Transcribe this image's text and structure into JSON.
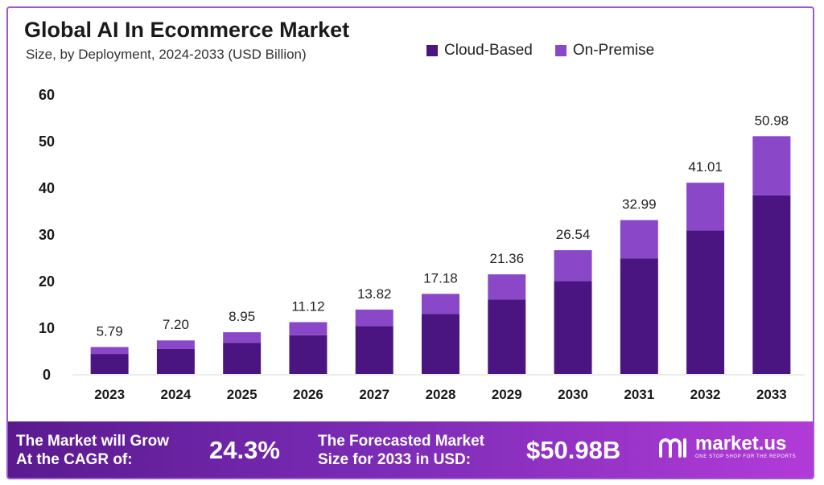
{
  "header": {
    "title": "Global AI In Ecommerce Market",
    "subtitle": "Size, by Deployment, 2024-2033 (USD Billion)"
  },
  "legend": [
    {
      "label": "Cloud-Based",
      "color": "#4a1580"
    },
    {
      "label": "On-Premise",
      "color": "#8a48c8"
    }
  ],
  "chart_data": {
    "type": "bar",
    "stacked": true,
    "categories": [
      "2023",
      "2024",
      "2025",
      "2026",
      "2027",
      "2028",
      "2029",
      "2030",
      "2031",
      "2032",
      "2033"
    ],
    "series": [
      {
        "name": "Cloud-Based",
        "color": "#4a1580",
        "values": [
          4.3,
          5.4,
          6.7,
          8.3,
          10.3,
          12.9,
          16.0,
          19.9,
          24.8,
          30.8,
          38.3
        ]
      },
      {
        "name": "On-Premise",
        "color": "#8a48c8",
        "values": [
          1.49,
          1.8,
          2.25,
          2.82,
          3.52,
          4.28,
          5.36,
          6.64,
          8.19,
          10.21,
          12.68
        ]
      }
    ],
    "totals": [
      "5.79",
      "7.20",
      "8.95",
      "11.12",
      "13.82",
      "17.18",
      "21.36",
      "26.54",
      "32.99",
      "41.01",
      "50.98"
    ],
    "yticks": [
      0,
      10,
      20,
      30,
      40,
      50,
      60
    ],
    "ylim": [
      0,
      60
    ],
    "title": "Global AI In Ecommerce Market",
    "xlabel": "",
    "ylabel": "",
    "grid": false,
    "legend_position": "top-right"
  },
  "footer": {
    "cagr_text_1": "The Market will Grow",
    "cagr_text_2": "At the CAGR of:",
    "cagr_value": "24.3%",
    "forecast_text_1": "The Forecasted Market",
    "forecast_text_2": "Size for 2033 in USD:",
    "forecast_value": "$50.98B",
    "brand_name": "market.us",
    "brand_tagline": "ONE STOP SHOP FOR THE REPORTS",
    "brand_icon": "market-us-logo-icon"
  }
}
